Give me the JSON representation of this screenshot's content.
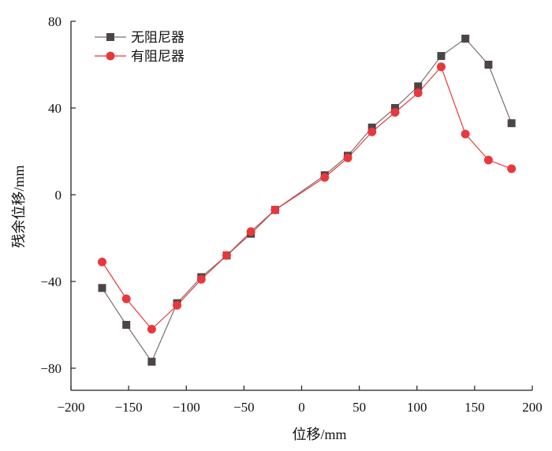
{
  "chart_data": {
    "type": "line",
    "title": "",
    "xlabel": "位移/mm",
    "ylabel": "残余位移/mm",
    "xlim": [
      -200,
      200
    ],
    "ylim": [
      -90,
      80
    ],
    "xticks": [
      -200,
      -150,
      -100,
      -50,
      0,
      50,
      100,
      150,
      200
    ],
    "yticks": [
      -80,
      -40,
      0,
      40,
      80
    ],
    "grid": false,
    "legend_position": "top-left",
    "colors": {
      "no_damper": "#4d4545",
      "no_damper_line": "#7a7070",
      "damper": "#e8383d"
    },
    "series": [
      {
        "name": "无阻尼器",
        "marker": "square",
        "x": [
          -173,
          -152,
          -130,
          -108,
          -87,
          -65,
          -44,
          -23,
          20,
          40,
          61,
          81,
          101,
          121,
          142,
          162,
          182
        ],
        "y": [
          -43,
          -60,
          -77,
          -50,
          -38,
          -28,
          -18,
          -7,
          9,
          18,
          31,
          40,
          50,
          64,
          72,
          60,
          33
        ]
      },
      {
        "name": "有阻尼器",
        "marker": "circle",
        "x": [
          -173,
          -152,
          -130,
          -108,
          -87,
          -65,
          -44,
          -23,
          20,
          40,
          61,
          81,
          101,
          121,
          142,
          162,
          182
        ],
        "y": [
          -31,
          -48,
          -62,
          -51,
          -39,
          -28,
          -17,
          -7,
          8,
          17,
          29,
          38,
          47,
          59,
          28,
          16,
          12
        ]
      }
    ]
  }
}
